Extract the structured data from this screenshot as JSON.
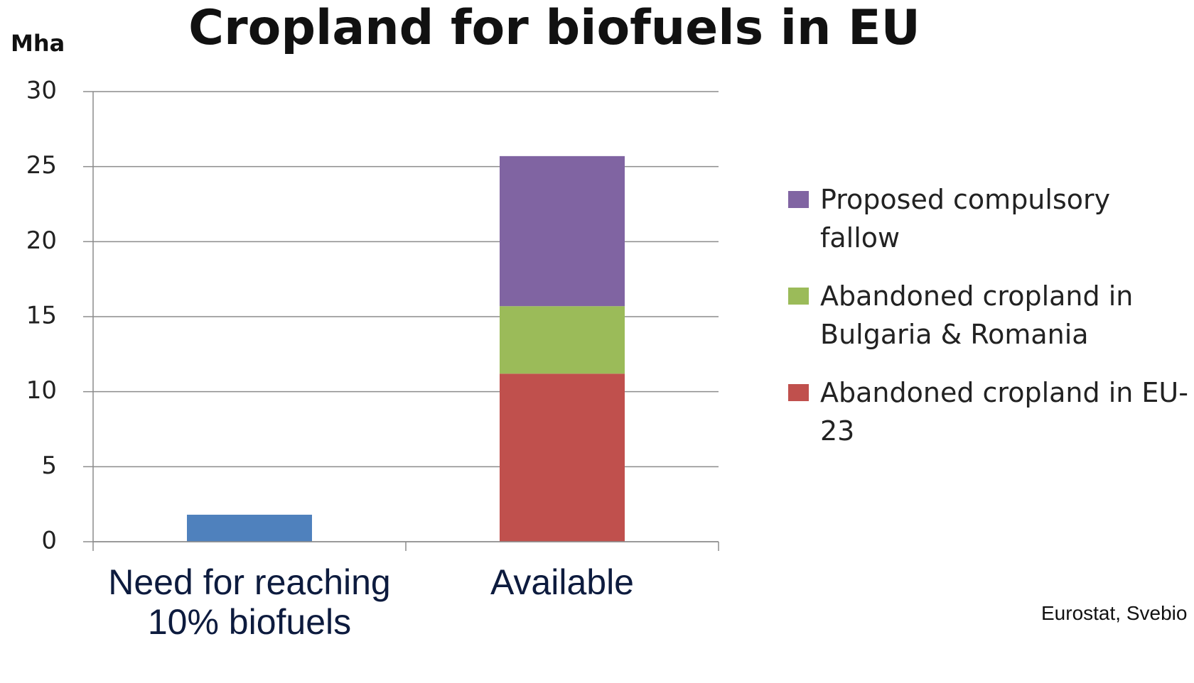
{
  "chart_data": {
    "type": "stacked_bar",
    "title": "Cropland for biofuels in EU",
    "y_label": "Mha",
    "categories": [
      "Need for reaching 10% biofuels",
      "Available"
    ],
    "series": [
      {
        "color": "#4f81bd",
        "values": [
          1.8,
          null
        ]
      },
      {
        "name": "Abandoned cropland in EU-23",
        "color": "#c0504d",
        "values": [
          null,
          11.2
        ]
      },
      {
        "name": "Abandoned cropland in Bulgaria & Romania",
        "color": "#9bbb59",
        "values": [
          null,
          4.5
        ]
      },
      {
        "name": "Proposed compulsory fallow",
        "color": "#8064a2",
        "values": [
          null,
          10
        ]
      }
    ],
    "ylim": [
      0,
      30
    ],
    "yticks": [
      0,
      5,
      10,
      15,
      20,
      25,
      30
    ],
    "grid": true,
    "legend": "right",
    "source": "Eurostat, Svebio"
  }
}
